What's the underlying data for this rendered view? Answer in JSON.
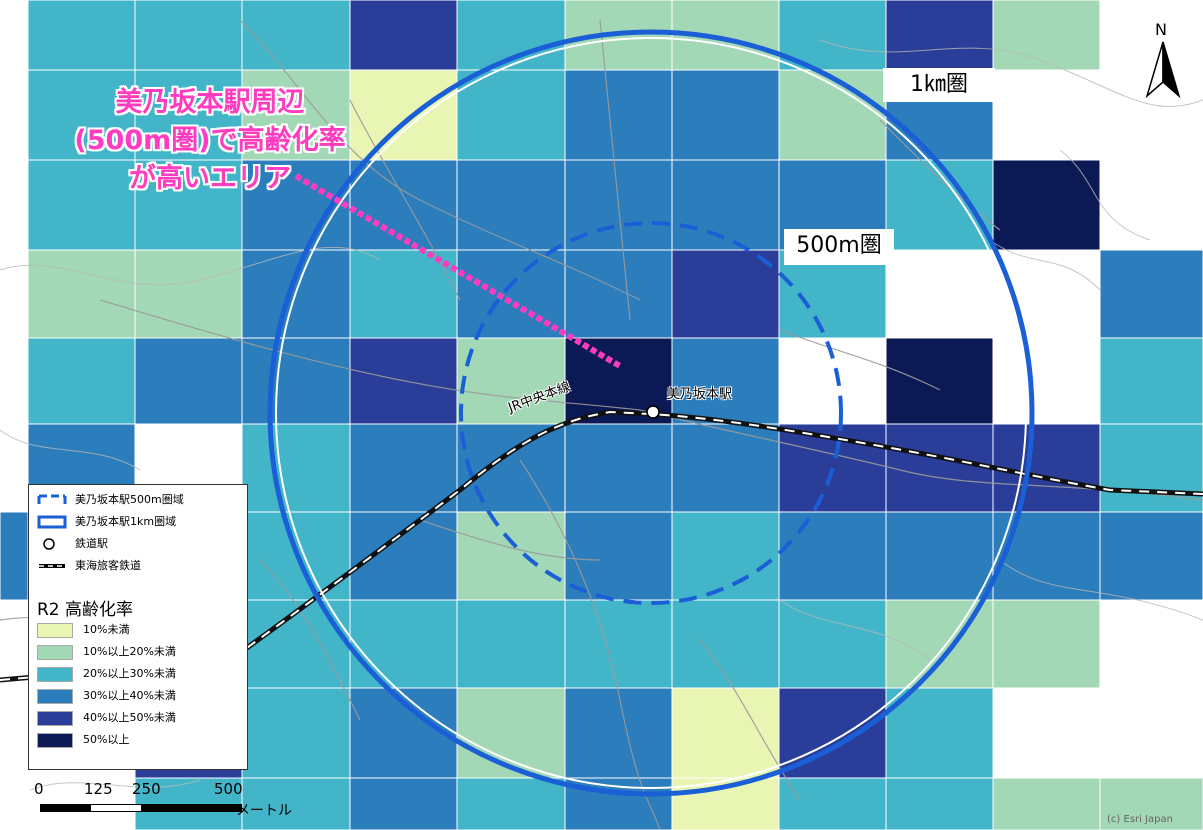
{
  "map": {
    "callout": [
      "美乃坂本駅周辺",
      "(500m圏)で高齢化率",
      "が高いエリア"
    ],
    "ring_1km_label": "1㎞圏",
    "ring_500m_label": "500m圏",
    "station_label": "美乃坂本駅",
    "line_label": "JR中央本線",
    "north_letter": "N",
    "credit": "(c) Esri Japan"
  },
  "legend": {
    "items": [
      {
        "label": "美乃坂本駅500m圏域",
        "symbol": "dashed-ring-icon"
      },
      {
        "label": "美乃坂本駅1km圏域",
        "symbol": "solid-ring-icon"
      },
      {
        "label": "鉄道駅",
        "symbol": "station-circle-icon"
      },
      {
        "label": "東海旅客鉄道",
        "symbol": "railway-line-icon"
      }
    ],
    "title": "R2 高齢化率",
    "classes": [
      {
        "label": "10%未満",
        "color": "#e9f5b3"
      },
      {
        "label": "10%以上20%未満",
        "color": "#a3d8b6"
      },
      {
        "label": "20%以上30%未満",
        "color": "#43b5c8"
      },
      {
        "label": "30%以上40%未満",
        "color": "#2b7dbc"
      },
      {
        "label": "40%以上50%未満",
        "color": "#2a3d99"
      },
      {
        "label": "50%以上",
        "color": "#0b1a55"
      }
    ]
  },
  "scale": {
    "ticks": [
      "0",
      "125",
      "250",
      "500"
    ],
    "unit": "メートル"
  },
  "colors": {
    "ring": "#1a5fd6",
    "callout": "#ff3bbf",
    "rail": "#111111"
  }
}
